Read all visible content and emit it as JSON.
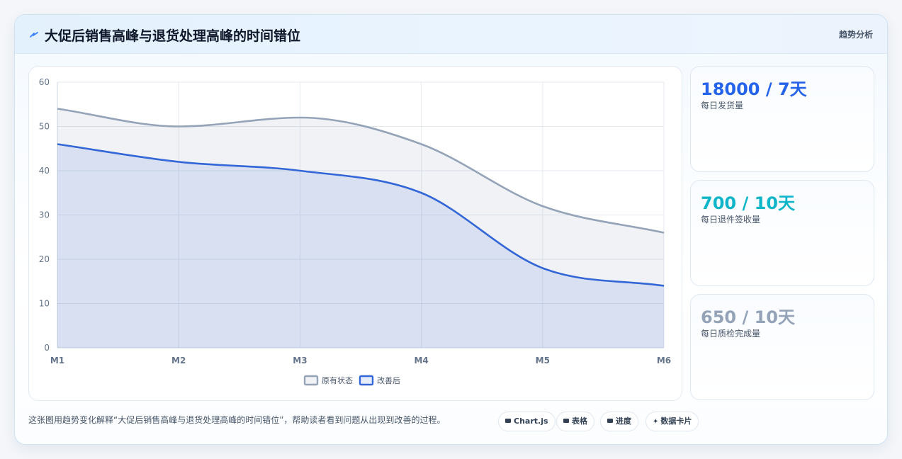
{
  "header": {
    "title": "大促后销售高峰与退货处理高峰的时间错位",
    "tag": "趋势分析",
    "icon": "bolt-icon"
  },
  "chart_data": {
    "type": "area",
    "title": "",
    "xlabel": "",
    "ylabel": "",
    "categories": [
      "M1",
      "M2",
      "M3",
      "M4",
      "M5",
      "M6"
    ],
    "ylim": [
      0,
      60
    ],
    "yticks": [
      0,
      10,
      20,
      30,
      40,
      50,
      60
    ],
    "grid": true,
    "legend_position": "bottom",
    "series": [
      {
        "name": "原有状态",
        "values": [
          54,
          50,
          52,
          46,
          32,
          26
        ],
        "color": "#94a3b8",
        "fill": "rgba(148,163,184,0.14)"
      },
      {
        "name": "改善后",
        "values": [
          46,
          42,
          40,
          35,
          18,
          14
        ],
        "color": "#3366d6",
        "fill": "rgba(51,102,214,0.12)"
      }
    ]
  },
  "stats": [
    {
      "value": "18000 / 7天",
      "label": "每日发货量",
      "color": "#2563eb"
    },
    {
      "value": "700 / 10天",
      "label": "每日退件签收量",
      "color": "#0fb5c9"
    },
    {
      "value": "650 / 10天",
      "label": "每日质检完成量",
      "color": "#94a3b8"
    }
  ],
  "caption": "这张图用趋势变化解释“大促后销售高峰与退货处理高峰的时间错位”，帮助读者看到问题从出现到改善的过程。",
  "chips": [
    {
      "label": "Chart.js",
      "icon": "card-icon"
    },
    {
      "label": "表格",
      "icon": "table-icon"
    },
    {
      "label": "进度",
      "icon": "progress-icon"
    },
    {
      "label": "数据卡片",
      "icon": "sparkle-icon"
    }
  ]
}
